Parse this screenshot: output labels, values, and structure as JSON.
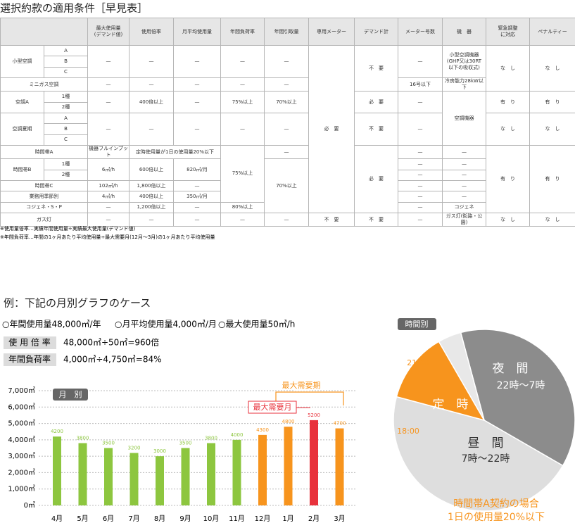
{
  "title": "選択約款の適用条件［早見表］",
  "table": {
    "header": [
      "最大使用量\n(デマンド値)",
      "使用倍率",
      "月平均使用量",
      "年間負荷率",
      "年間引取量",
      "専用メーター",
      "デマンド計",
      "メーター号数",
      "機　器",
      "緊急調整\nに対応",
      "ペナルティー"
    ],
    "rows": [
      [
        "小型空調",
        "A",
        "—",
        "—",
        "—",
        "—",
        "—",
        "必　要",
        "不　要",
        "—",
        "小型空調機器\n(GHP又は30RT\n以下の吸収式)",
        "な　し",
        "な　し"
      ],
      [
        "B"
      ],
      [
        "C"
      ],
      [
        "ミニガス空調",
        "—",
        "—",
        "—",
        "—",
        "—",
        "16号以下",
        "冷房能力28kW以下"
      ],
      [
        "空調A",
        "1種",
        "—",
        "400倍以上",
        "—",
        "75%以上",
        "70%以上",
        "必　要",
        "—",
        "空調機器",
        "有　り",
        "有　り"
      ],
      [
        "2種"
      ],
      [
        "空調夏期",
        "A",
        "—",
        "—",
        "—",
        "—",
        "—",
        "不　要",
        "—",
        "な　し",
        "な　し"
      ],
      [
        "B"
      ],
      [
        "C"
      ],
      [
        "時間帯A",
        "機器フルインプット",
        "定時使用量が1日の使用量20%以下",
        "75%以上",
        "—",
        "必　要",
        "—",
        "—",
        "有　り",
        "有　り"
      ],
      [
        "時間帯B",
        "1種",
        "6㎥/h",
        "600倍以上",
        "820㎥/月",
        "70%以上",
        "—",
        "—"
      ],
      [
        "2種",
        "—",
        "—"
      ],
      [
        "時間帯C",
        "102㎥/h",
        "1,800倍以上",
        "—",
        "—",
        "—"
      ],
      [
        "業務用季節別",
        "4㎥/h",
        "400倍以上",
        "350㎥/月",
        "—",
        "—"
      ],
      [
        "コジェネ・S・P",
        "—",
        "1,200倍以上",
        "—",
        "80%以上",
        "—",
        "コジェネ"
      ],
      [
        "ガス灯",
        "—",
        "—",
        "—",
        "—",
        "—",
        "不　要",
        "不　要",
        "—",
        "ガス灯(街路・公園)",
        "な　し",
        "な　し"
      ]
    ]
  },
  "notes": [
    "※使用量倍率…実績年間使用量÷実績最大使用量(デマンド値)",
    "※年間負荷率…年間の1ヶ月あたり平均使用量÷最大需要月(12月～3月)の1ヶ月あたり平均使用量"
  ],
  "example": {
    "heading": "例：下記の月別グラフのケース",
    "conditions": [
      "○年間使用量48,000㎥/年",
      "○月平均使用量4,000㎥/月",
      "○最大使用量50㎥/h"
    ],
    "calcs": [
      {
        "label": "使 用 倍 率",
        "text": "48,000㎥÷50㎥=960倍"
      },
      {
        "label": "年間負荷率",
        "text": "4,000㎥÷4,750㎥=84%"
      }
    ]
  },
  "chart_data": [
    {
      "type": "bar",
      "badge": "月　別",
      "categories": [
        "4月",
        "5月",
        "6月",
        "7月",
        "8月",
        "9月",
        "10月",
        "11月",
        "12月",
        "1月",
        "2月",
        "3月"
      ],
      "values": [
        4200,
        3800,
        3500,
        3200,
        3000,
        3500,
        3800,
        4000,
        4300,
        4800,
        5200,
        4700
      ],
      "colors": [
        "#8dc63f",
        "#8dc63f",
        "#8dc63f",
        "#8dc63f",
        "#8dc63f",
        "#8dc63f",
        "#8dc63f",
        "#8dc63f",
        "#f7941d",
        "#f7941d",
        "#e8323c",
        "#f7941d"
      ],
      "ylim": [
        0,
        7000
      ],
      "yticks": [
        {
          "value": 0,
          "label": "0㎥"
        },
        {
          "value": 1000,
          "label": "1,000㎥"
        },
        {
          "value": 2000,
          "label": "2,000㎥"
        },
        {
          "value": 3000,
          "label": "3,000㎥"
        },
        {
          "value": 4000,
          "label": "4,000㎥"
        },
        {
          "value": 5000,
          "label": "5,000㎥"
        },
        {
          "value": 6000,
          "label": "6,000㎥"
        },
        {
          "value": 7000,
          "label": "7,000㎥"
        }
      ],
      "grid": true,
      "annotations": [
        "最大需要期",
        "最大需要月"
      ]
    },
    {
      "type": "pie",
      "badge": "時間別",
      "categories": [
        "夜　間",
        "昼　間",
        "定　時",
        null
      ],
      "sublabels": [
        "22時～7時",
        "7時～22時",
        null,
        null
      ],
      "values": [
        9,
        11,
        3,
        1
      ],
      "colors": [
        "#8c8c8c",
        "#dedede",
        "#f7941d",
        "#e8e8e8"
      ],
      "boundary_labels": [
        "18:00",
        "21:00"
      ],
      "caption": [
        "時間帯A契約の場合",
        "1日の使用量20%以下"
      ]
    }
  ]
}
